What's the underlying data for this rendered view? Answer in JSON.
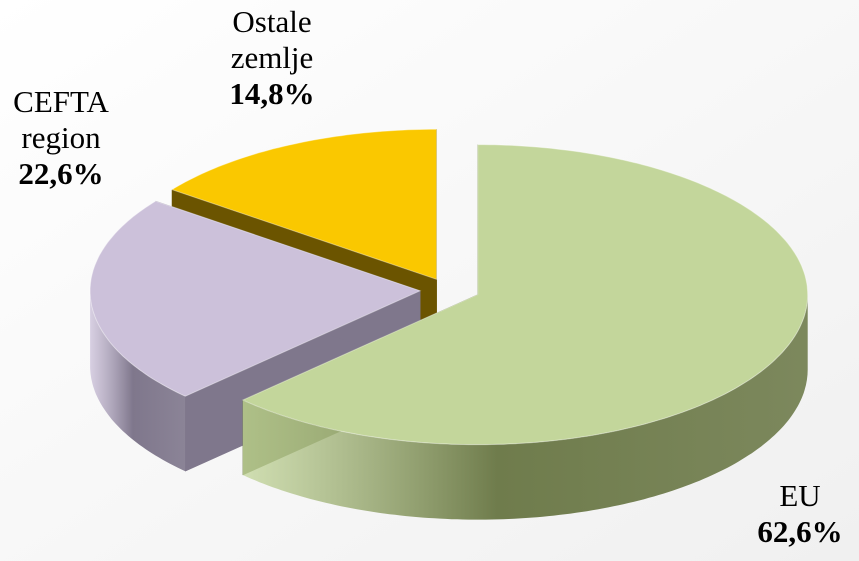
{
  "chart_data": {
    "type": "pie3d",
    "categories": [
      "EU",
      "CEFTA region",
      "Ostale zemlje"
    ],
    "values": [
      62.6,
      22.6,
      14.8
    ],
    "value_labels": [
      "62,6%",
      "22,6%",
      "14,8%"
    ],
    "colors": [
      "#c3d69b",
      "#ccc1da",
      "#fac800"
    ],
    "side_colors": [
      "#6f7c4c",
      "#7f778c",
      "#6b5400"
    ]
  }
}
